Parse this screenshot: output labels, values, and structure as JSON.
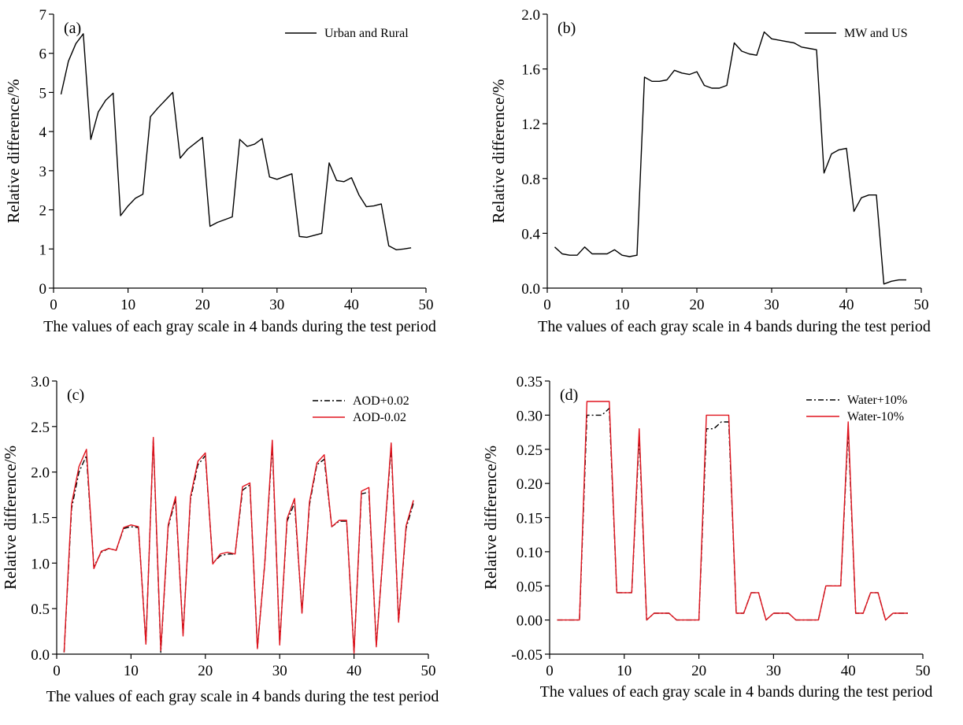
{
  "chart_data": [
    {
      "type": "line",
      "panel_label": "(a)",
      "xlabel": "The values of each gray scale in 4 bands during the test period",
      "ylabel": "Relative difference/%",
      "xlim": [
        0,
        50
      ],
      "ylim": [
        0,
        7
      ],
      "xticks": [
        0,
        10,
        20,
        30,
        40,
        50
      ],
      "yticks": [
        0,
        1,
        2,
        3,
        4,
        5,
        6,
        7
      ],
      "ytick_labels": [
        "0",
        "1",
        "2",
        "3",
        "4",
        "5",
        "6",
        "7"
      ],
      "legend": "top-right",
      "grid": false,
      "x": [
        1,
        2,
        3,
        4,
        5,
        6,
        7,
        8,
        9,
        10,
        11,
        12,
        13,
        14,
        15,
        16,
        17,
        18,
        19,
        20,
        21,
        22,
        23,
        24,
        25,
        26,
        27,
        28,
        29,
        30,
        31,
        32,
        33,
        34,
        35,
        36,
        37,
        38,
        39,
        40,
        41,
        42,
        43,
        44,
        45,
        46,
        47,
        48
      ],
      "series": [
        {
          "name": "Urban and Rural",
          "color": "#000000",
          "dash": "solid",
          "values": [
            4.95,
            5.8,
            6.25,
            6.5,
            3.8,
            4.5,
            4.8,
            4.98,
            1.85,
            2.1,
            2.3,
            2.4,
            4.38,
            4.6,
            4.8,
            5.0,
            3.32,
            3.55,
            3.7,
            3.85,
            1.58,
            1.68,
            1.75,
            1.82,
            3.8,
            3.62,
            3.68,
            3.82,
            2.84,
            2.78,
            2.85,
            2.92,
            1.32,
            1.3,
            1.35,
            1.4,
            3.2,
            2.75,
            2.72,
            2.82,
            2.38,
            2.08,
            2.1,
            2.15,
            1.08,
            0.98,
            1.0,
            1.03
          ]
        }
      ]
    },
    {
      "type": "line",
      "panel_label": "(b)",
      "xlabel": "The values of each gray scale in 4 bands during the test period",
      "ylabel": "Relative difference/%",
      "xlim": [
        0,
        50
      ],
      "ylim": [
        0,
        2
      ],
      "xticks": [
        0,
        10,
        20,
        30,
        40,
        50
      ],
      "yticks": [
        0,
        0.4,
        0.8,
        1.2,
        1.6,
        2.0
      ],
      "ytick_labels": [
        "0.0",
        "0.4",
        "0.8",
        "1.2",
        "1.6",
        "2.0"
      ],
      "legend": "top-right",
      "grid": false,
      "x": [
        1,
        2,
        3,
        4,
        5,
        6,
        7,
        8,
        9,
        10,
        11,
        12,
        13,
        14,
        15,
        16,
        17,
        18,
        19,
        20,
        21,
        22,
        23,
        24,
        25,
        26,
        27,
        28,
        29,
        30,
        31,
        32,
        33,
        34,
        35,
        36,
        37,
        38,
        39,
        40,
        41,
        42,
        43,
        44,
        45,
        46,
        47,
        48
      ],
      "series": [
        {
          "name": "MW and US",
          "color": "#000000",
          "dash": "solid",
          "values": [
            0.3,
            0.25,
            0.24,
            0.24,
            0.3,
            0.25,
            0.25,
            0.25,
            0.28,
            0.24,
            0.23,
            0.24,
            1.54,
            1.51,
            1.51,
            1.52,
            1.59,
            1.57,
            1.56,
            1.58,
            1.48,
            1.46,
            1.46,
            1.48,
            1.79,
            1.73,
            1.71,
            1.7,
            1.87,
            1.82,
            1.81,
            1.8,
            1.79,
            1.76,
            1.75,
            1.74,
            0.84,
            0.98,
            1.01,
            1.02,
            0.56,
            0.66,
            0.68,
            0.68,
            0.03,
            0.05,
            0.06,
            0.06
          ]
        }
      ]
    },
    {
      "type": "line",
      "panel_label": "(c)",
      "xlabel": "The values of each gray scale in 4 bands during the test period",
      "ylabel": "Relative difference/%",
      "xlim": [
        0,
        50
      ],
      "ylim": [
        0,
        3
      ],
      "xticks": [
        0,
        10,
        20,
        30,
        40,
        50
      ],
      "yticks": [
        0,
        0.5,
        1.0,
        1.5,
        2.0,
        2.5,
        3.0
      ],
      "ytick_labels": [
        "0.0",
        "0.5",
        "1.0",
        "1.5",
        "2.0",
        "2.5",
        "3.0"
      ],
      "legend": "top-right",
      "grid": false,
      "x": [
        1,
        2,
        3,
        4,
        5,
        6,
        7,
        8,
        9,
        10,
        11,
        12,
        13,
        14,
        15,
        16,
        17,
        18,
        19,
        20,
        21,
        22,
        23,
        24,
        25,
        26,
        27,
        28,
        29,
        30,
        31,
        32,
        33,
        34,
        35,
        36,
        37,
        38,
        39,
        40,
        41,
        42,
        43,
        44,
        45,
        46,
        47,
        48
      ],
      "series": [
        {
          "name": "AOD+0.02",
          "color": "#000000",
          "dash": "dashdot",
          "values": [
            0.02,
            1.6,
            2.0,
            2.18,
            0.96,
            1.12,
            1.16,
            1.14,
            1.38,
            1.4,
            1.39,
            0.12,
            2.36,
            0.02,
            1.4,
            1.7,
            0.22,
            1.7,
            2.08,
            2.18,
            1.0,
            1.08,
            1.1,
            1.1,
            1.8,
            1.86,
            0.07,
            1.0,
            2.3,
            0.12,
            1.46,
            1.66,
            0.46,
            1.64,
            2.08,
            2.14,
            1.4,
            1.46,
            1.46,
            0.02,
            1.76,
            1.78,
            0.1,
            1.2,
            2.28,
            0.36,
            1.38,
            1.66
          ]
        },
        {
          "name": "AOD-0.02",
          "color": "#e0141e",
          "dash": "solid",
          "values": [
            0.02,
            1.65,
            2.06,
            2.25,
            0.94,
            1.13,
            1.16,
            1.14,
            1.39,
            1.42,
            1.4,
            0.11,
            2.38,
            0.04,
            1.42,
            1.73,
            0.2,
            1.73,
            2.12,
            2.21,
            0.99,
            1.1,
            1.12,
            1.1,
            1.84,
            1.88,
            0.06,
            1.0,
            2.35,
            0.1,
            1.49,
            1.71,
            0.45,
            1.67,
            2.1,
            2.19,
            1.4,
            1.47,
            1.47,
            0.01,
            1.79,
            1.83,
            0.08,
            1.21,
            2.32,
            0.35,
            1.41,
            1.69
          ]
        }
      ]
    },
    {
      "type": "line",
      "panel_label": "(d)",
      "xlabel": "The values of each gray scale in 4 bands during the test period",
      "ylabel": "Relative difference/%",
      "xlim": [
        0,
        50
      ],
      "ylim": [
        -0.05,
        0.35
      ],
      "xticks": [
        0,
        10,
        20,
        30,
        40,
        50
      ],
      "yticks": [
        -0.05,
        0,
        0.05,
        0.1,
        0.15,
        0.2,
        0.25,
        0.3,
        0.35
      ],
      "ytick_labels": [
        "-0.05",
        "0.00",
        "0.05",
        "0.10",
        "0.15",
        "0.20",
        "0.25",
        "0.30",
        "0.35"
      ],
      "legend": "top-right",
      "grid": false,
      "x": [
        1,
        2,
        3,
        4,
        5,
        6,
        7,
        8,
        9,
        10,
        11,
        12,
        13,
        14,
        15,
        16,
        17,
        18,
        19,
        20,
        21,
        22,
        23,
        24,
        25,
        26,
        27,
        28,
        29,
        30,
        31,
        32,
        33,
        34,
        35,
        36,
        37,
        38,
        39,
        40,
        41,
        42,
        43,
        44,
        45,
        46,
        47,
        48
      ],
      "series": [
        {
          "name": "Water+10%",
          "color": "#000000",
          "dash": "dashdot",
          "values": [
            0,
            0,
            0,
            0,
            0.3,
            0.3,
            0.3,
            0.31,
            0.04,
            0.04,
            0.04,
            0.27,
            0.0,
            0.01,
            0.01,
            0.01,
            0.0,
            0.0,
            0.0,
            0.0,
            0.28,
            0.28,
            0.29,
            0.29,
            0.01,
            0.01,
            0.04,
            0.04,
            0.0,
            0.01,
            0.01,
            0.01,
            0.0,
            0.0,
            0.0,
            0.0,
            0.05,
            0.05,
            0.05,
            0.28,
            0.01,
            0.01,
            0.04,
            0.04,
            0.0,
            0.01,
            0.01,
            0.01
          ]
        },
        {
          "name": "Water-10%",
          "color": "#e0141e",
          "dash": "solid",
          "values": [
            0,
            0,
            0,
            0,
            0.32,
            0.32,
            0.32,
            0.32,
            0.04,
            0.04,
            0.04,
            0.28,
            0.0,
            0.01,
            0.01,
            0.01,
            0.0,
            0.0,
            0.0,
            0.0,
            0.3,
            0.3,
            0.3,
            0.3,
            0.01,
            0.01,
            0.04,
            0.04,
            0.0,
            0.01,
            0.01,
            0.01,
            0.0,
            0.0,
            0.0,
            0.0,
            0.05,
            0.05,
            0.05,
            0.29,
            0.01,
            0.01,
            0.04,
            0.04,
            0.0,
            0.01,
            0.01,
            0.01
          ]
        }
      ]
    }
  ]
}
